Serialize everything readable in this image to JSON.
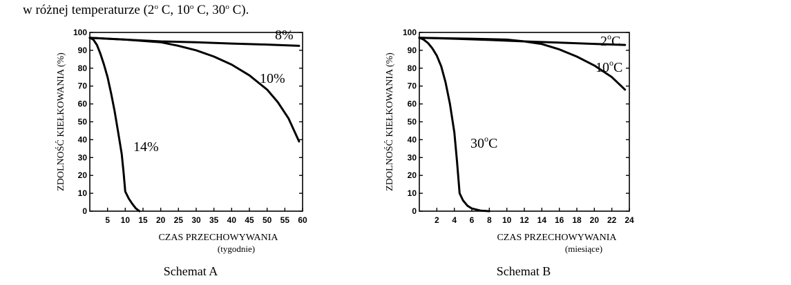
{
  "intro": {
    "prefix": "w różnej temperaturze (2",
    "deg1": "o",
    "part2": " C, 10",
    "deg2": "o",
    "part3": " C, 30",
    "deg3": "o",
    "part4": " C)."
  },
  "chart_data": [
    {
      "type": "line",
      "caption": "Schemat A",
      "ylabel": "ZDOLNOŚĆ KIEŁKOWANIA (%)",
      "xlabel": "CZAS PRZECHOWYWANIA",
      "xunit": "(tygodnie)",
      "xlim": [
        0,
        60
      ],
      "ylim": [
        0,
        100
      ],
      "xticks": [
        5,
        10,
        15,
        20,
        25,
        30,
        35,
        40,
        45,
        50,
        55,
        60
      ],
      "yticks": [
        0,
        10,
        20,
        30,
        40,
        50,
        60,
        70,
        80,
        90,
        100
      ],
      "grid": false,
      "series": [
        {
          "name": "8%",
          "x": [
            0,
            5,
            10,
            20,
            30,
            40,
            50,
            59
          ],
          "y": [
            97,
            96.5,
            96,
            95,
            94.5,
            93.8,
            93.2,
            92.5
          ]
        },
        {
          "name": "10%",
          "x": [
            0,
            10,
            20,
            25,
            30,
            35,
            40,
            45,
            50,
            53,
            56,
            59
          ],
          "y": [
            97,
            96,
            94.5,
            92.5,
            90,
            86.5,
            82,
            76,
            68,
            61,
            52,
            39
          ]
        },
        {
          "name": "14%",
          "x": [
            0,
            1,
            2,
            3,
            4,
            5,
            6,
            7,
            8,
            9,
            9.5,
            10,
            11,
            12,
            13,
            14
          ],
          "y": [
            97,
            96,
            93,
            88,
            82,
            75,
            66,
            56,
            44,
            32,
            22,
            11,
            7,
            4,
            1.5,
            0
          ]
        }
      ]
    },
    {
      "type": "line",
      "caption": "Schemat B",
      "ylabel": "ZDOLNOŚĆ KIEŁKOWANIA (%)",
      "xlabel": "CZAS PRZECHOWYWANIA",
      "xunit": "(miesiące)",
      "xlim": [
        0,
        24
      ],
      "ylim": [
        0,
        100
      ],
      "xticks": [
        2,
        4,
        6,
        8,
        10,
        12,
        14,
        16,
        18,
        20,
        22,
        24
      ],
      "yticks": [
        0,
        10,
        20,
        30,
        40,
        50,
        60,
        70,
        80,
        90,
        100
      ],
      "grid": false,
      "series": [
        {
          "name": "2°C",
          "x": [
            0,
            4,
            8,
            12,
            16,
            20,
            23.5
          ],
          "y": [
            97,
            96.5,
            95.8,
            95,
            94.3,
            93.6,
            93
          ]
        },
        {
          "name": "10°C",
          "x": [
            0,
            6,
            10,
            12,
            14,
            16,
            18,
            20,
            22,
            23.5
          ],
          "y": [
            97,
            96.5,
            96,
            95,
            93.5,
            90.5,
            86.5,
            81.5,
            75,
            68
          ]
        },
        {
          "name": "30°C",
          "x": [
            0,
            0.5,
            1,
            1.5,
            2,
            2.5,
            3,
            3.5,
            4,
            4.3,
            4.6,
            5,
            5.5,
            6,
            7,
            8
          ],
          "y": [
            97,
            96,
            94,
            91,
            87,
            81,
            72,
            60,
            44,
            28,
            10,
            6,
            3,
            1.5,
            0.3,
            0
          ]
        }
      ]
    }
  ]
}
